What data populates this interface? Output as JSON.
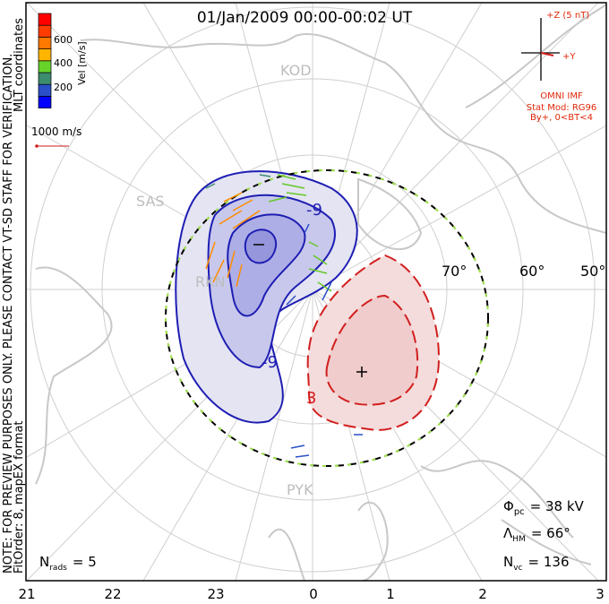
{
  "title": "01/Jan/2009 00:00-00:02 UT",
  "coords_label": "MLT coordinates",
  "note": "NOTE: FOR PREVIEW PURPOSES ONLY. PLEASE CONTACT VT-SD STAFF FOR VERIFICATION.",
  "fit_info": "FitOrder: 8, mapEX format",
  "colorbar": {
    "label": "Vel [m/s]",
    "ticks": [
      "200",
      "400",
      "600"
    ],
    "colors": [
      "#0000ff",
      "#2a4fc8",
      "#3c8c6e",
      "#66d22a",
      "#ffb400",
      "#ff7800",
      "#ff3c00",
      "#ff0000"
    ]
  },
  "reference_vector": "1000 m/s",
  "imf": {
    "z_label": "+Z (5 nT)",
    "y_label": "+Y",
    "source": "OMNI IMF",
    "model": "Stat Mod: RG96",
    "condition": "By+, 0<BT<4"
  },
  "stations": [
    "KOD",
    "SAS",
    "PYK",
    "RKN"
  ],
  "latitude_labels": [
    "70°",
    "60°",
    "50°"
  ],
  "contour_labels": [
    "-9",
    "-9",
    "3"
  ],
  "stats": {
    "phi_pc": {
      "symbol": "Φ",
      "sub": "pc",
      "value": "= 38 kV"
    },
    "lambda_hm": {
      "symbol": "Λ",
      "sub": "HM",
      "value": "= 66°"
    },
    "n_vc": {
      "symbol": "N",
      "sub": "vc",
      "value": "= 136"
    },
    "n_rads": {
      "symbol": "N",
      "sub": "rads",
      "value": "= 5"
    }
  },
  "mlt_ticks": [
    "21",
    "22",
    "23",
    "0",
    "1",
    "2",
    "3"
  ],
  "colors": {
    "negative": "#1e1eb4",
    "positive": "#d21e1e",
    "land": "#c8c8c8",
    "grid": "#c8c8c8"
  }
}
